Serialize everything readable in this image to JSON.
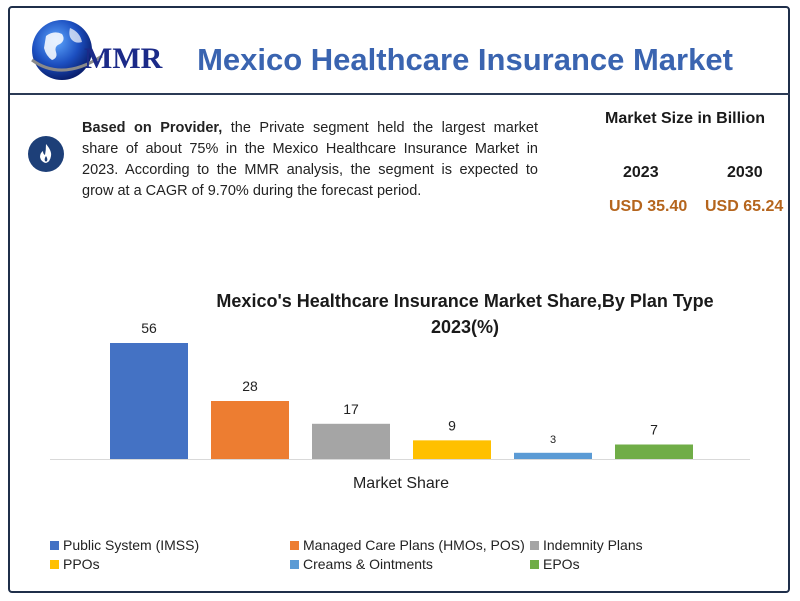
{
  "brand": {
    "logo_text": "MMR"
  },
  "header": {
    "title": "Mexico Healthcare Insurance Market"
  },
  "description": {
    "bold_lead": "Based on Provider,",
    "text": " the Private segment held the largest market share of about 75% in the Mexico Healthcare Insurance Market in 2023. According to the MMR analysis, the segment is expected to grow at a CAGR of 9.70% during the forecast period."
  },
  "market_size": {
    "title": "Market Size in Billion",
    "year_a": "2023",
    "year_b": "2030",
    "value_a": "USD 35.40",
    "value_b": "USD 65.24"
  },
  "chart_data": {
    "type": "bar",
    "title": "Mexico's Healthcare Insurance Market Share,By Plan Type 2023(%)",
    "xlabel": "Market Share",
    "ylabel": "",
    "ylim": [
      0,
      56
    ],
    "grid": false,
    "legend_position": "bottom",
    "series": [
      {
        "name": "Public System (IMSS)",
        "value": 56,
        "color": "#4472c4"
      },
      {
        "name": "Managed Care Plans (HMOs, POS)",
        "value": 28,
        "color": "#ed7d31"
      },
      {
        "name": "Indemnity Plans",
        "value": 17,
        "color": "#a5a5a5"
      },
      {
        "name": "PPOs",
        "value": 9,
        "color": "#ffc000"
      },
      {
        "name": "Creams & Ointments",
        "value": 3,
        "color": "#5b9bd5"
      },
      {
        "name": "EPOs",
        "value": 7,
        "color": "#70ad47"
      }
    ]
  },
  "colors": {
    "title": "#3a64b0",
    "amount": "#b5651d",
    "frame": "#1f2f4a"
  },
  "icons": {
    "badge": "flame-icon",
    "logo": "globe-icon"
  }
}
